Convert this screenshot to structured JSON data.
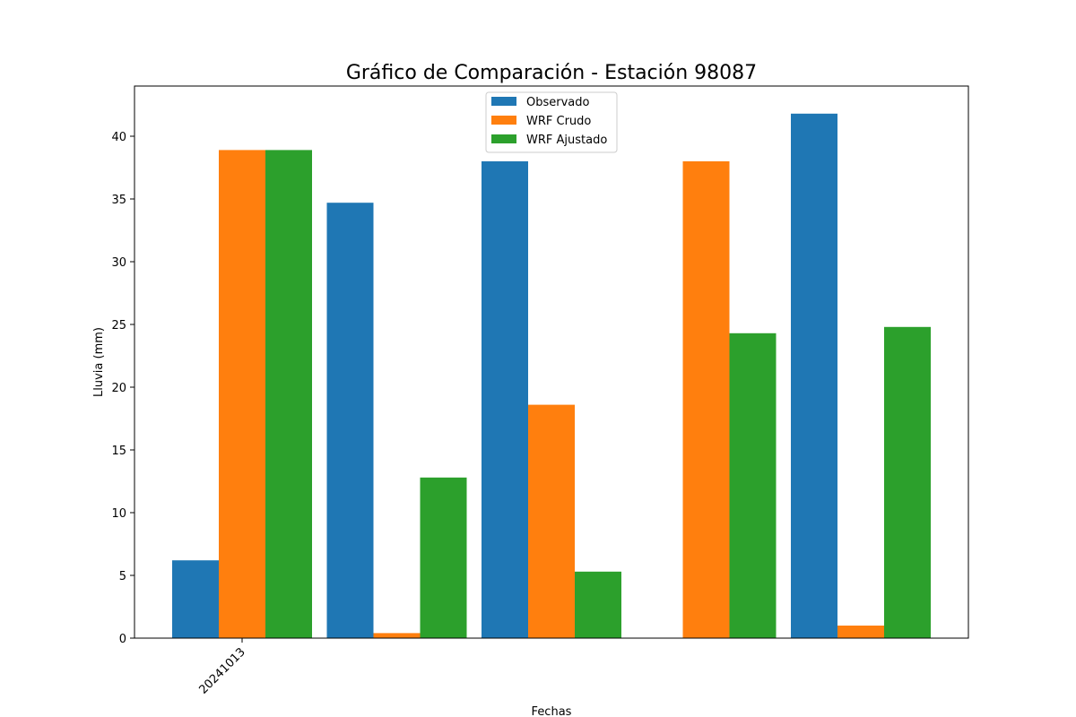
{
  "chart_data": {
    "type": "bar",
    "title": "Gráfico de Comparación - Estación 98087",
    "xlabel": "Fechas",
    "ylabel": "Lluvia (mm)",
    "ylim": [
      0,
      44
    ],
    "yticks": [
      0,
      5,
      10,
      15,
      20,
      25,
      30,
      35,
      40
    ],
    "categories": [
      "20241013",
      "",
      "",
      "",
      ""
    ],
    "xtick_labels": [
      "20241013"
    ],
    "legend_position": "upper center",
    "series": [
      {
        "name": "Observado",
        "color": "#1f77b4",
        "values": [
          6.2,
          34.7,
          38.0,
          0.0,
          41.8
        ]
      },
      {
        "name": "WRF Crudo",
        "color": "#ff7f0e",
        "values": [
          38.9,
          0.4,
          18.6,
          38.0,
          1.0
        ]
      },
      {
        "name": "WRF Ajustado",
        "color": "#2ca02c",
        "values": [
          38.9,
          12.8,
          5.3,
          24.3,
          24.8
        ]
      }
    ]
  }
}
